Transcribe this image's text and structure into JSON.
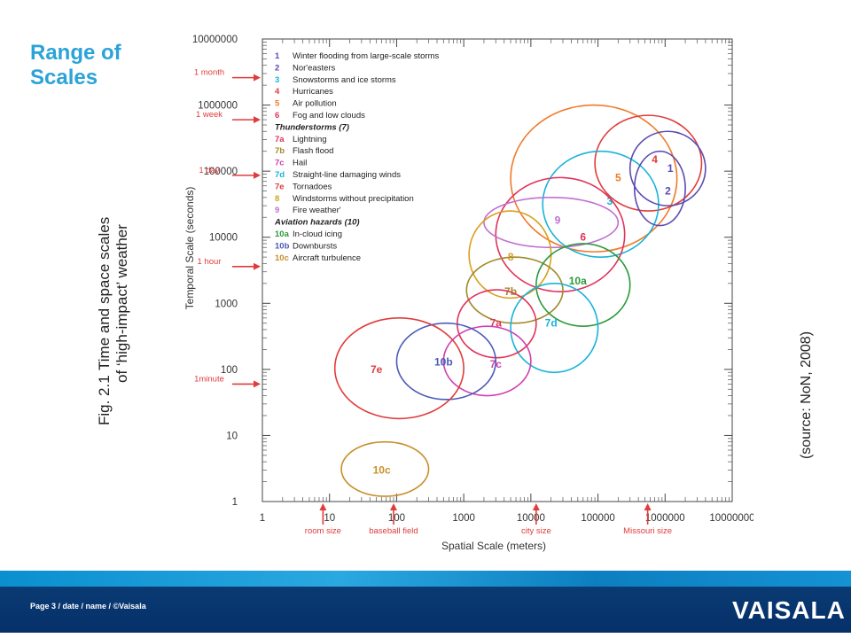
{
  "slide": {
    "title": "Range of\nScales",
    "fig_number": "Fig. 2.1",
    "caption_line1": "Time and space scales",
    "caption_line2": "of ‘high-impact’ weather",
    "source": "(source: NoN, 2008)",
    "footer": "Page 3 / date / name / ©Vaisala",
    "logo": "VAISALA"
  },
  "colors": {
    "title": "#2ba3d8",
    "band_light": "#1a9ad8",
    "band_dark": "#0a3a73",
    "marker": "#e03c3c"
  },
  "chart_data": {
    "type": "scatter",
    "xlabel": "Spatial Scale (meters)",
    "ylabel": "Temporal Scale (seconds)",
    "x_scale": "log",
    "y_scale": "log",
    "xlim": [
      1,
      10000000
    ],
    "ylim": [
      1,
      10000000
    ],
    "x_tick_labels": [
      "1",
      "10",
      "100",
      "1000",
      "10000",
      "100000",
      "1000000",
      "10000000"
    ],
    "y_tick_labels": [
      "1",
      "10",
      "100",
      "1000",
      "10000",
      "100000",
      "1000000",
      "10000000"
    ],
    "x_markers": [
      {
        "label": "room size",
        "x": 8
      },
      {
        "label": "baseball field",
        "x": 90
      },
      {
        "label": "city size",
        "x": 12000
      },
      {
        "label": "Missouri size",
        "x": 550000
      }
    ],
    "y_markers": [
      {
        "label": "1 month",
        "y": 2600000
      },
      {
        "label": "1 week",
        "y": 600000
      },
      {
        "label": "1 day",
        "y": 86400
      },
      {
        "label": "1 hour",
        "y": 3600
      },
      {
        "label": "1minute",
        "y": 60
      }
    ],
    "legend": [
      {
        "code": "1",
        "text": "Winter flooding from large-scale storms",
        "color": "#5a4bb0"
      },
      {
        "code": "2",
        "text": "Nor'easters",
        "color": "#5a4bb0"
      },
      {
        "code": "3",
        "text": "Snowstorms and ice storms",
        "color": "#19b3d8"
      },
      {
        "code": "4",
        "text": "Hurricanes",
        "color": "#e03c3c"
      },
      {
        "code": "5",
        "text": "Air pollution",
        "color": "#f07a2a"
      },
      {
        "code": "6",
        "text": "Fog and low clouds",
        "color": "#e0325a"
      },
      {
        "code": "",
        "text": "Thunderstorms (7)",
        "color": "#222222",
        "header": true
      },
      {
        "code": "7a",
        "text": "Lightning",
        "color": "#e0325a"
      },
      {
        "code": "7b",
        "text": "Flash flood",
        "color": "#a08a2a"
      },
      {
        "code": "7c",
        "text": "Hail",
        "color": "#d040b0"
      },
      {
        "code": "7d",
        "text": "Straight-line damaging winds",
        "color": "#19b3d8"
      },
      {
        "code": "7e",
        "text": "Tornadoes",
        "color": "#e03c3c"
      },
      {
        "code": "8",
        "text": "Windstorms without precipitation",
        "color": "#d8a020"
      },
      {
        "code": "9",
        "text": "Fire weather'",
        "color": "#c070d0"
      },
      {
        "code": "",
        "text": "Aviation hazards (10)",
        "color": "#222222",
        "header": true
      },
      {
        "code": "10a",
        "text": "In-cloud icing",
        "color": "#2a9a3a"
      },
      {
        "code": "10b",
        "text": "Downbursts",
        "color": "#4a5ab8"
      },
      {
        "code": "10c",
        "text": "Aircraft turbulence",
        "color": "#c8902a"
      }
    ],
    "regions": [
      {
        "label": "5",
        "x_center": 200000,
        "y_center": 80000,
        "x_range": [
          5000,
          1500000
        ],
        "y_range": [
          6000,
          1000000
        ],
        "color": "#f07a2a"
      },
      {
        "label": "4",
        "x_center": 700000,
        "y_center": 150000,
        "x_range": [
          90000,
          3500000
        ],
        "y_range": [
          25000,
          700000
        ],
        "color": "#e03c3c"
      },
      {
        "label": "3",
        "x_center": 150000,
        "y_center": 35000,
        "x_range": [
          15000,
          800000
        ],
        "y_range": [
          5000,
          200000
        ],
        "color": "#19b3d8"
      },
      {
        "label": "1",
        "x_center": 1200000,
        "y_center": 110000,
        "x_range": [
          300000,
          4000000
        ],
        "y_range": [
          30000,
          400000
        ],
        "color": "#5a4bb0"
      },
      {
        "label": "2",
        "x_center": 1100000,
        "y_center": 50000,
        "x_range": [
          350000,
          2000000
        ],
        "y_range": [
          15000,
          200000
        ],
        "color": "#5a4bb0"
      },
      {
        "label": "6",
        "x_center": 60000,
        "y_center": 10000,
        "x_range": [
          3000,
          250000
        ],
        "y_range": [
          1500,
          80000
        ],
        "color": "#e0325a"
      },
      {
        "label": "9",
        "x_center": 25000,
        "y_center": 18000,
        "x_range": [
          2000,
          200000
        ],
        "y_range": [
          7000,
          40000
        ],
        "color": "#c070d0"
      },
      {
        "label": "8",
        "x_center": 5000,
        "y_center": 5000,
        "x_range": [
          1200,
          20000
        ],
        "y_range": [
          1200,
          25000
        ],
        "color": "#d8a020"
      },
      {
        "label": "7b",
        "x_center": 5000,
        "y_center": 1500,
        "x_range": [
          1100,
          30000
        ],
        "y_range": [
          500,
          5000
        ],
        "color": "#a08a2a"
      },
      {
        "label": "10a",
        "x_center": 50000,
        "y_center": 2200,
        "x_range": [
          12000,
          300000
        ],
        "y_range": [
          450,
          8000
        ],
        "color": "#2a9a3a"
      },
      {
        "label": "7d",
        "x_center": 20000,
        "y_center": 500,
        "x_range": [
          5000,
          100000
        ],
        "y_range": [
          90,
          2000
        ],
        "color": "#19b3d8"
      },
      {
        "label": "7a",
        "x_center": 3000,
        "y_center": 500,
        "x_range": [
          800,
          12000
        ],
        "y_range": [
          150,
          1600
        ],
        "color": "#e0325a"
      },
      {
        "label": "7c",
        "x_center": 3000,
        "y_center": 120,
        "x_range": [
          500,
          10000
        ],
        "y_range": [
          40,
          450
        ],
        "color": "#d040b0"
      },
      {
        "label": "10b",
        "x_center": 500,
        "y_center": 130,
        "x_range": [
          100,
          3000
        ],
        "y_range": [
          35,
          500
        ],
        "color": "#4a5ab8"
      },
      {
        "label": "7e",
        "x_center": 50,
        "y_center": 100,
        "x_range": [
          12,
          1000
        ],
        "y_range": [
          18,
          600
        ],
        "color": "#e03c3c"
      },
      {
        "label": "10c",
        "x_center": 60,
        "y_center": 3,
        "x_range": [
          15,
          300
        ],
        "y_range": [
          1.2,
          8
        ],
        "color": "#c8902a"
      }
    ]
  }
}
